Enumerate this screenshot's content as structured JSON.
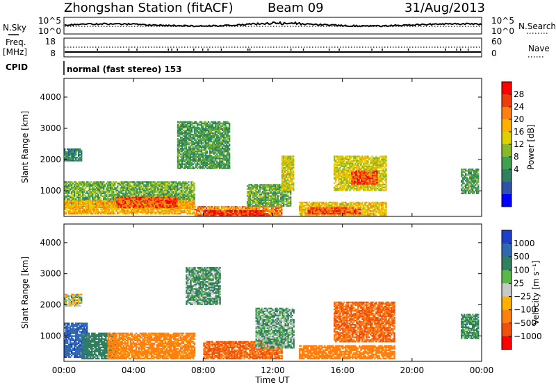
{
  "header": {
    "station": "Zhongshan Station (fitACF)",
    "beam": "Beam 09",
    "date": "31/Aug/2013"
  },
  "strip1": {
    "left_label": "N.Sky",
    "right_label": "N.Search",
    "left_ticks": [
      "10^5",
      "10^0"
    ],
    "right_ticks": [
      "10^5",
      "10^0"
    ]
  },
  "strip2": {
    "left_label_1": "Freq.",
    "left_label_2": "[MHz]",
    "right_label": "Nave",
    "left_ticks": [
      "18",
      "8"
    ],
    "right_ticks": [
      "60",
      "0"
    ]
  },
  "cpid": {
    "label": "CPID",
    "mode_text": "normal (fast stereo) 153"
  },
  "power_panel": {
    "ylabel": "Slant Range [km]",
    "colorbar_label": "Power [dB]",
    "colorbar_ticks": [
      "28",
      "24",
      "20",
      "16",
      "12",
      "8",
      "4"
    ],
    "colorbar_colors": [
      "#ff0000",
      "#ee3c0a",
      "#ff7f12",
      "#ffb000",
      "#e0d000",
      "#8ab828",
      "#3fa050",
      "#2f7f60",
      "#2f52a6",
      "#0000ff"
    ]
  },
  "velocity_panel": {
    "ylabel": "Slant Range [km]",
    "colorbar_label": "Velocity [m s⁻¹]",
    "colorbar_ticks": [
      "1000",
      "500",
      "100",
      "25",
      "−25",
      "−100",
      "−500",
      "−1000"
    ],
    "colorbar_colors": [
      "#1e40c8",
      "#2f6ab0",
      "#2f7f60",
      "#5ab848",
      "#c8c8c8",
      "#ffb000",
      "#ff8010",
      "#ee5010",
      "#ff0000"
    ]
  },
  "xaxis": {
    "label": "Time UT",
    "ticks": [
      "00:00",
      "04:00",
      "08:00",
      "12:00",
      "16:00",
      "20:00",
      "00:00"
    ]
  },
  "chart_data": {
    "type": "heatmap",
    "title": "Zhongshan Station (fitACF)",
    "x": {
      "label": "Time UT",
      "range": [
        0,
        24
      ],
      "unit": "hour"
    },
    "y": {
      "label": "Slant Range [km]",
      "range": [
        180,
        4600
      ],
      "ticks": [
        1000,
        2000,
        3000,
        4000
      ]
    },
    "power_scale": {
      "label": "Power [dB]",
      "ticks": [
        4,
        8,
        12,
        16,
        20,
        24,
        28
      ]
    },
    "velocity_scale": {
      "label": "Velocity [m s⁻¹]",
      "ticks": [
        -1000,
        -500,
        -100,
        -25,
        25,
        100,
        500,
        1000
      ]
    },
    "power_regions": [
      {
        "t0": 0.0,
        "t1": 1.0,
        "r0": 1950,
        "r1": 2350,
        "value": 10
      },
      {
        "t0": 0.0,
        "t1": 7.5,
        "r0": 450,
        "r1": 1300,
        "value": 14
      },
      {
        "t0": 0.0,
        "t1": 7.5,
        "r0": 250,
        "r1": 700,
        "value": 22
      },
      {
        "t0": 3.0,
        "t1": 6.5,
        "r0": 450,
        "r1": 800,
        "value": 27
      },
      {
        "t0": 6.5,
        "t1": 9.5,
        "r0": 1700,
        "r1": 3200,
        "value": 12
      },
      {
        "t0": 7.5,
        "t1": 12.5,
        "r0": 200,
        "r1": 500,
        "value": 24
      },
      {
        "t0": 8.0,
        "t1": 11.5,
        "r0": 200,
        "r1": 360,
        "value": 29
      },
      {
        "t0": 10.5,
        "t1": 13.0,
        "r0": 500,
        "r1": 1200,
        "value": 14
      },
      {
        "t0": 12.5,
        "t1": 13.2,
        "r0": 1000,
        "r1": 2100,
        "value": 18
      },
      {
        "t0": 13.5,
        "t1": 18.5,
        "r0": 200,
        "r1": 650,
        "value": 20
      },
      {
        "t0": 14.0,
        "t1": 17.0,
        "r0": 250,
        "r1": 450,
        "value": 27
      },
      {
        "t0": 15.5,
        "t1": 18.5,
        "r0": 1000,
        "r1": 2100,
        "value": 18
      },
      {
        "t0": 16.5,
        "t1": 18.0,
        "r0": 1200,
        "r1": 1650,
        "value": 27
      },
      {
        "t0": 22.8,
        "t1": 23.8,
        "r0": 900,
        "r1": 1700,
        "value": 12
      }
    ],
    "velocity_regions": [
      {
        "t0": 0.0,
        "t1": 1.0,
        "r0": 1950,
        "r1": 2350,
        "value": 0
      },
      {
        "t0": 0.0,
        "t1": 1.3,
        "r0": 300,
        "r1": 1400,
        "value": 700
      },
      {
        "t0": 1.0,
        "t1": 3.0,
        "r0": 250,
        "r1": 1100,
        "value": 150
      },
      {
        "t0": 2.5,
        "t1": 7.5,
        "r0": 250,
        "r1": 1100,
        "value": -120
      },
      {
        "t0": 7.0,
        "t1": 9.0,
        "r0": 2000,
        "r1": 3200,
        "value": 80
      },
      {
        "t0": 8.0,
        "t1": 12.5,
        "r0": 250,
        "r1": 800,
        "value": -300
      },
      {
        "t0": 11.0,
        "t1": 13.2,
        "r0": 600,
        "r1": 1900,
        "value": 60
      },
      {
        "t0": 13.5,
        "t1": 19.0,
        "r0": 250,
        "r1": 700,
        "value": -200
      },
      {
        "t0": 15.5,
        "t1": 19.0,
        "r0": 800,
        "r1": 2100,
        "value": -300
      },
      {
        "t0": 22.8,
        "t1": 23.8,
        "r0": 900,
        "r1": 1700,
        "value": 100
      }
    ]
  }
}
